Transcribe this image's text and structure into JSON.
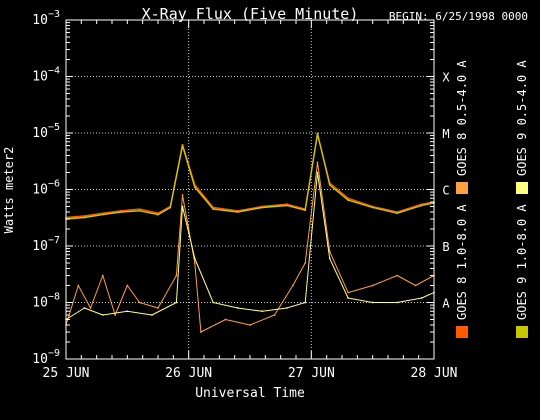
{
  "chart_data": {
    "type": "line",
    "title": "X-Ray Flux (Five Minute)",
    "begin_label": "BEGIN: 6/25/1998 0000",
    "xlabel": "Universal Time",
    "ylabel": "Watts meter2",
    "x_tick_labels": [
      "25 JUN",
      "26 JUN",
      "27 JUN",
      "28 JUN"
    ],
    "x_range_days": [
      0,
      3
    ],
    "y_scale": "log",
    "y_range": [
      1e-09,
      0.001
    ],
    "y_tick_exponents": [
      -9,
      -8,
      -7,
      -6,
      -5,
      -4,
      -3
    ],
    "flare_classes": [
      {
        "label": "X",
        "value": 0.0001
      },
      {
        "label": "M",
        "value": 1e-05
      },
      {
        "label": "C",
        "value": 1e-06
      },
      {
        "label": "B",
        "value": 1e-07
      },
      {
        "label": "A",
        "value": 1e-08
      }
    ],
    "grid": true,
    "legend_position": "right",
    "series": [
      {
        "name": "GOES 8 1.0-8.0 A",
        "color": "#ff5a00",
        "band": "long",
        "points": [
          [
            0,
            3.2e-07
          ],
          [
            0.15,
            3.4e-07
          ],
          [
            0.3,
            3.8e-07
          ],
          [
            0.45,
            4.2e-07
          ],
          [
            0.6,
            4.5e-07
          ],
          [
            0.75,
            3.8e-07
          ],
          [
            0.85,
            5e-07
          ],
          [
            0.95,
            6.2e-06
          ],
          [
            1.05,
            1.2e-06
          ],
          [
            1.2,
            4.8e-07
          ],
          [
            1.4,
            4.2e-07
          ],
          [
            1.6,
            5e-07
          ],
          [
            1.8,
            5.5e-07
          ],
          [
            1.95,
            4.5e-07
          ],
          [
            2.05,
            9.5e-06
          ],
          [
            2.15,
            1.3e-06
          ],
          [
            2.3,
            7e-07
          ],
          [
            2.5,
            5e-07
          ],
          [
            2.7,
            4e-07
          ],
          [
            2.9,
            5.5e-07
          ],
          [
            3.0,
            6e-07
          ]
        ]
      },
      {
        "name": "GOES 8 0.5-4.0 A",
        "color": "#ffa040",
        "band": "short",
        "points": [
          [
            0,
            4e-09
          ],
          [
            0.1,
            2e-08
          ],
          [
            0.2,
            8e-09
          ],
          [
            0.3,
            3e-08
          ],
          [
            0.4,
            6e-09
          ],
          [
            0.5,
            2e-08
          ],
          [
            0.6,
            1e-08
          ],
          [
            0.75,
            8e-09
          ],
          [
            0.9,
            3e-08
          ],
          [
            0.95,
            8e-07
          ],
          [
            1.05,
            5e-08
          ],
          [
            1.1,
            3e-09
          ],
          [
            1.3,
            5e-09
          ],
          [
            1.5,
            4e-09
          ],
          [
            1.7,
            6e-09
          ],
          [
            1.85,
            2e-08
          ],
          [
            1.95,
            5e-08
          ],
          [
            2.05,
            3e-06
          ],
          [
            2.15,
            8e-08
          ],
          [
            2.3,
            1.5e-08
          ],
          [
            2.5,
            2e-08
          ],
          [
            2.7,
            3e-08
          ],
          [
            2.85,
            2e-08
          ],
          [
            3.0,
            3e-08
          ]
        ]
      },
      {
        "name": "GOES 9 1.0-8.0 A",
        "color": "#c8c800",
        "band": "long",
        "points": [
          [
            0,
            3e-07
          ],
          [
            0.15,
            3.2e-07
          ],
          [
            0.3,
            3.6e-07
          ],
          [
            0.45,
            4e-07
          ],
          [
            0.6,
            4.2e-07
          ],
          [
            0.75,
            3.6e-07
          ],
          [
            0.85,
            4.8e-07
          ],
          [
            0.95,
            6e-06
          ],
          [
            1.05,
            1.1e-06
          ],
          [
            1.2,
            4.5e-07
          ],
          [
            1.4,
            4e-07
          ],
          [
            1.6,
            4.8e-07
          ],
          [
            1.8,
            5.2e-07
          ],
          [
            1.95,
            4.3e-07
          ],
          [
            2.05,
            9.8e-06
          ],
          [
            2.15,
            1.2e-06
          ],
          [
            2.3,
            6.5e-07
          ],
          [
            2.5,
            4.8e-07
          ],
          [
            2.7,
            3.8e-07
          ],
          [
            2.9,
            5.2e-07
          ],
          [
            3.0,
            5.8e-07
          ]
        ]
      },
      {
        "name": "GOES 9 0.5-4.0 A",
        "color": "#ffff80",
        "band": "short",
        "points": [
          [
            0,
            5e-09
          ],
          [
            0.15,
            8e-09
          ],
          [
            0.3,
            6e-09
          ],
          [
            0.5,
            7e-09
          ],
          [
            0.7,
            6e-09
          ],
          [
            0.9,
            1e-08
          ],
          [
            0.95,
            5e-07
          ],
          [
            1.05,
            6e-08
          ],
          [
            1.2,
            1e-08
          ],
          [
            1.4,
            8e-09
          ],
          [
            1.6,
            7e-09
          ],
          [
            1.8,
            8e-09
          ],
          [
            1.95,
            1e-08
          ],
          [
            2.05,
            2e-06
          ],
          [
            2.15,
            6e-08
          ],
          [
            2.3,
            1.2e-08
          ],
          [
            2.5,
            1e-08
          ],
          [
            2.7,
            1e-08
          ],
          [
            2.9,
            1.2e-08
          ],
          [
            3.0,
            1.5e-08
          ]
        ]
      }
    ]
  }
}
